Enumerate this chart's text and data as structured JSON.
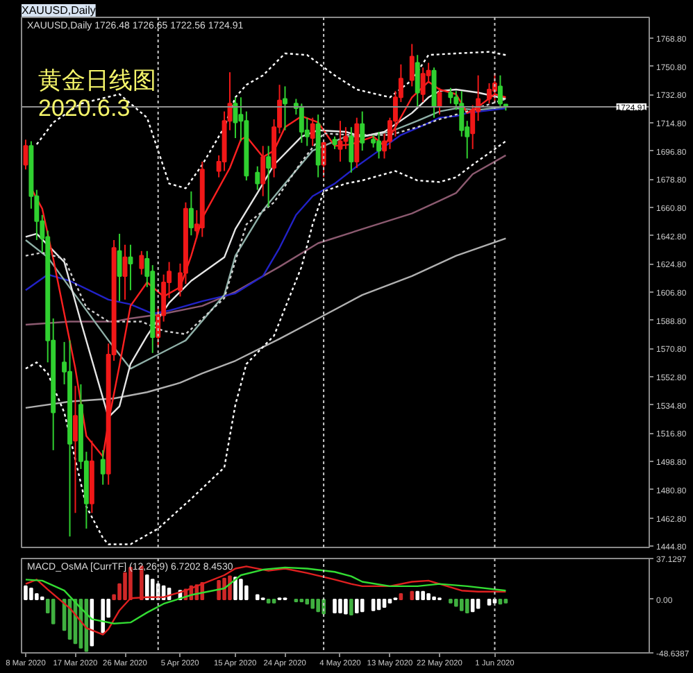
{
  "chart_data": [
    {
      "type": "candlestick",
      "title": "XAUUSD,Daily",
      "subtitle": "XAUUSD,Daily  1726.48 1726.65 1722.56 1724.91",
      "annotations": [
        "黄金日线图",
        "2020.6.3"
      ],
      "x": [
        "2020-03-08",
        "2020-03-09",
        "2020-03-10",
        "2020-03-11",
        "2020-03-12",
        "2020-03-13",
        "2020-03-15",
        "2020-03-16",
        "2020-03-17",
        "2020-03-18",
        "2020-03-19",
        "2020-03-20",
        "2020-03-22",
        "2020-03-23",
        "2020-03-24",
        "2020-03-25",
        "2020-03-26",
        "2020-03-27",
        "2020-03-29",
        "2020-03-30",
        "2020-03-31",
        "2020-04-01",
        "2020-04-02",
        "2020-04-03",
        "2020-04-05",
        "2020-04-06",
        "2020-04-07",
        "2020-04-08",
        "2020-04-09",
        "2020-04-12",
        "2020-04-13",
        "2020-04-14",
        "2020-04-15",
        "2020-04-16",
        "2020-04-17",
        "2020-04-19",
        "2020-04-20",
        "2020-04-21",
        "2020-04-22",
        "2020-04-23",
        "2020-04-24",
        "2020-04-26",
        "2020-04-27",
        "2020-04-28",
        "2020-04-29",
        "2020-04-30",
        "2020-05-01",
        "2020-05-03",
        "2020-05-04",
        "2020-05-05",
        "2020-05-06",
        "2020-05-07",
        "2020-05-08",
        "2020-05-10",
        "2020-05-11",
        "2020-05-12",
        "2020-05-13",
        "2020-05-14",
        "2020-05-15",
        "2020-05-17",
        "2020-05-18",
        "2020-05-19",
        "2020-05-20",
        "2020-05-21",
        "2020-05-22",
        "2020-05-24",
        "2020-05-25",
        "2020-05-26",
        "2020-05-27",
        "2020-05-28",
        "2020-05-29",
        "2020-05-31",
        "2020-06-01",
        "2020-06-02",
        "2020-06-03"
      ],
      "ohlc": [
        [
          1688,
          1704,
          1685,
          1700
        ],
        [
          1700,
          1703,
          1660,
          1668
        ],
        [
          1668,
          1672,
          1640,
          1652
        ],
        [
          1652,
          1656,
          1632,
          1641
        ],
        [
          1642,
          1646,
          1562,
          1576
        ],
        [
          1576,
          1590,
          1506,
          1530
        ],
        [
          1562,
          1575,
          1548,
          1556
        ],
        [
          1556,
          1576,
          1451,
          1510
        ],
        [
          1512,
          1547,
          1466,
          1528
        ],
        [
          1535,
          1548,
          1494,
          1499
        ],
        [
          1499,
          1505,
          1456,
          1472
        ],
        [
          1472,
          1512,
          1466,
          1499
        ],
        [
          1500,
          1506,
          1484,
          1491
        ],
        [
          1491,
          1574,
          1484,
          1567
        ],
        [
          1567,
          1640,
          1563,
          1635
        ],
        [
          1633,
          1644,
          1601,
          1617
        ],
        [
          1617,
          1637,
          1602,
          1629
        ],
        [
          1629,
          1637,
          1608,
          1625
        ],
        [
          1622,
          1633,
          1618,
          1630
        ],
        [
          1628,
          1633,
          1610,
          1617
        ],
        [
          1620,
          1624,
          1568,
          1578
        ],
        [
          1578,
          1597,
          1572,
          1592
        ],
        [
          1592,
          1618,
          1588,
          1613
        ],
        [
          1613,
          1626,
          1603,
          1620
        ],
        [
          1608,
          1625,
          1604,
          1619
        ],
        [
          1619,
          1664,
          1612,
          1660
        ],
        [
          1660,
          1671,
          1643,
          1648
        ],
        [
          1646,
          1659,
          1641,
          1650
        ],
        [
          1648,
          1690,
          1642,
          1685
        ],
        [
          1684,
          1694,
          1680,
          1690
        ],
        [
          1690,
          1722,
          1684,
          1716
        ],
        [
          1716,
          1747,
          1710,
          1727
        ],
        [
          1727,
          1731,
          1705,
          1715
        ],
        [
          1720,
          1731,
          1703,
          1716
        ],
        [
          1716,
          1722,
          1678,
          1681
        ],
        [
          1683,
          1687,
          1672,
          1676
        ],
        [
          1676,
          1700,
          1668,
          1693
        ],
        [
          1693,
          1700,
          1661,
          1686
        ],
        [
          1686,
          1717,
          1680,
          1712
        ],
        [
          1712,
          1739,
          1708,
          1729
        ],
        [
          1730,
          1738,
          1710,
          1727
        ],
        [
          1727,
          1730,
          1720,
          1724
        ],
        [
          1725,
          1727,
          1702,
          1709
        ],
        [
          1710,
          1718,
          1700,
          1706
        ],
        [
          1705,
          1718,
          1700,
          1714
        ],
        [
          1714,
          1720,
          1680,
          1688
        ],
        [
          1688,
          1704,
          1680,
          1702
        ],
        [
          1704,
          1706,
          1698,
          1701
        ],
        [
          1698,
          1716,
          1690,
          1703
        ],
        [
          1703,
          1712,
          1698,
          1706
        ],
        [
          1706,
          1712,
          1683,
          1690
        ],
        [
          1690,
          1718,
          1686,
          1714
        ],
        [
          1714,
          1722,
          1697,
          1702
        ],
        [
          1704,
          1707,
          1699,
          1702
        ],
        [
          1703,
          1709,
          1692,
          1697
        ],
        [
          1697,
          1708,
          1692,
          1703
        ],
        [
          1703,
          1718,
          1698,
          1716
        ],
        [
          1716,
          1735,
          1706,
          1731
        ],
        [
          1731,
          1752,
          1728,
          1743
        ],
        [
          1742,
          1765,
          1738,
          1757
        ],
        [
          1753,
          1758,
          1725,
          1734
        ],
        [
          1733,
          1750,
          1728,
          1746
        ],
        [
          1745,
          1753,
          1740,
          1748
        ],
        [
          1748,
          1750,
          1718,
          1725
        ],
        [
          1725,
          1737,
          1720,
          1734
        ],
        [
          1734,
          1737,
          1727,
          1731
        ],
        [
          1731,
          1735,
          1723,
          1727
        ],
        [
          1727,
          1735,
          1706,
          1710
        ],
        [
          1712,
          1716,
          1692,
          1706
        ],
        [
          1708,
          1726,
          1698,
          1723
        ],
        [
          1722,
          1745,
          1716,
          1730
        ],
        [
          1730,
          1740,
          1727,
          1736
        ],
        [
          1735,
          1746,
          1728,
          1740
        ],
        [
          1738,
          1745,
          1724,
          1727
        ],
        [
          1726.48,
          1726.65,
          1722.56,
          1724.91
        ]
      ],
      "colors": [
        "#f01818",
        "#30d030",
        "#30d030",
        "#30d030",
        "#30d030",
        "#30d030",
        "#30d030",
        "#30d030",
        "#f01818",
        "#30d030",
        "#30d030",
        "#f01818",
        "#30d030",
        "#f01818",
        "#f01818",
        "#30d030",
        "#f01818",
        "#30d030",
        "#f01818",
        "#30d030",
        "#30d030",
        "#f01818",
        "#f01818",
        "#f01818",
        "#f01818",
        "#f01818",
        "#30d030",
        "#f01818",
        "#f01818",
        "#f01818",
        "#f01818",
        "#f01818",
        "#30d030",
        "#30d030",
        "#30d030",
        "#30d030",
        "#f01818",
        "#30d030",
        "#f01818",
        "#f01818",
        "#30d030",
        "#30d030",
        "#30d030",
        "#30d030",
        "#f01818",
        "#30d030",
        "#f01818",
        "#30d030",
        "#f01818",
        "#f01818",
        "#30d030",
        "#f01818",
        "#30d030",
        "#30d030",
        "#30d030",
        "#f01818",
        "#f01818",
        "#f01818",
        "#f01818",
        "#f01818",
        "#30d030",
        "#f01818",
        "#f01818",
        "#30d030",
        "#f01818",
        "#30d030",
        "#30d030",
        "#30d030",
        "#30d030",
        "#f01818",
        "#f01818",
        "#f01818",
        "#f01818",
        "#30d030",
        "#30d030"
      ],
      "series": [
        {
          "type": "line",
          "color": "#b0b0b0",
          "x": [
            "2020-03-08",
            "2020-03-16",
            "2020-03-24",
            "2020-03-30",
            "2020-04-05",
            "2020-04-09",
            "2020-04-15",
            "2020-04-23",
            "2020-04-30",
            "2020-05-08",
            "2020-05-17",
            "2020-05-25",
            "2020-06-03"
          ],
          "values": [
            1533,
            1537,
            1539,
            1543,
            1549,
            1555,
            1563,
            1577,
            1590,
            1605,
            1617,
            1630,
            1641
          ]
        },
        {
          "type": "line",
          "color": "#8c5a70",
          "x": [
            "2020-03-08",
            "2020-03-16",
            "2020-03-24",
            "2020-03-27",
            "2020-04-02",
            "2020-04-09",
            "2020-04-15",
            "2020-04-23",
            "2020-04-30",
            "2020-05-08",
            "2020-05-17",
            "2020-05-22",
            "2020-05-25",
            "2020-05-28",
            "2020-06-03"
          ],
          "values": [
            1586,
            1588,
            1588,
            1590,
            1593,
            1598,
            1607,
            1623,
            1638,
            1647,
            1657,
            1665,
            1670,
            1682,
            1694
          ]
        },
        {
          "type": "line",
          "color": "#2222c8",
          "x": [
            "2020-03-08",
            "2020-03-12",
            "2020-03-16",
            "2020-03-23",
            "2020-03-27",
            "2020-03-31",
            "2020-04-03",
            "2020-04-09",
            "2020-04-15",
            "2020-04-20",
            "2020-04-23",
            "2020-04-26",
            "2020-04-29",
            "2020-05-03",
            "2020-05-07",
            "2020-05-11",
            "2020-05-15",
            "2020-05-19",
            "2020-05-22",
            "2020-05-25",
            "2020-05-27",
            "2020-06-03"
          ],
          "values": [
            1608,
            1618,
            1614,
            1602,
            1599,
            1593,
            1595,
            1601,
            1606,
            1617,
            1635,
            1656,
            1668,
            1676,
            1687,
            1697,
            1707,
            1713,
            1718,
            1719,
            1721,
            1724
          ]
        },
        {
          "type": "line",
          "color": "#8fb0a8",
          "x": [
            "2020-03-08",
            "2020-03-12",
            "2020-03-18",
            "2020-03-23",
            "2020-03-27",
            "2020-04-01",
            "2020-04-06",
            "2020-04-13",
            "2020-04-15",
            "2020-04-20",
            "2020-04-24",
            "2020-04-29",
            "2020-05-05",
            "2020-05-08",
            "2020-05-13",
            "2020-05-18",
            "2020-05-22",
            "2020-05-25",
            "2020-05-29",
            "2020-06-03"
          ],
          "values": [
            1640,
            1629,
            1600,
            1576,
            1558,
            1567,
            1576,
            1605,
            1630,
            1659,
            1676,
            1697,
            1706,
            1706,
            1709,
            1716,
            1722,
            1724,
            1723,
            1725
          ]
        },
        {
          "type": "line",
          "color": "#e6e6e6",
          "x": [
            "2020-03-08",
            "2020-03-10",
            "2020-03-15",
            "2020-03-18",
            "2020-03-23",
            "2020-03-25",
            "2020-03-27",
            "2020-03-30",
            "2020-04-03",
            "2020-04-07",
            "2020-04-13",
            "2020-04-15",
            "2020-04-19",
            "2020-04-22",
            "2020-04-27",
            "2020-04-30",
            "2020-05-05",
            "2020-05-08",
            "2020-05-12",
            "2020-05-17",
            "2020-05-20",
            "2020-05-22",
            "2020-05-25",
            "2020-05-29",
            "2020-06-03"
          ],
          "values": [
            1642,
            1644,
            1626,
            1588,
            1527,
            1534,
            1561,
            1579,
            1600,
            1614,
            1629,
            1647,
            1670,
            1688,
            1706,
            1710,
            1709,
            1706,
            1709,
            1721,
            1731,
            1735,
            1736,
            1734,
            1730
          ]
        },
        {
          "type": "line",
          "color": "#ff2020",
          "x": [
            "2020-03-09",
            "2020-03-11",
            "2020-03-13",
            "2020-03-17",
            "2020-03-19",
            "2020-03-22",
            "2020-03-23",
            "2020-03-25",
            "2020-03-27",
            "2020-03-30",
            "2020-04-02",
            "2020-04-05",
            "2020-04-07",
            "2020-04-09",
            "2020-04-14",
            "2020-04-16",
            "2020-04-17",
            "2020-04-20",
            "2020-04-22",
            "2020-04-24",
            "2020-04-27",
            "2020-04-30",
            "2020-05-03",
            "2020-05-06",
            "2020-05-10",
            "2020-05-12",
            "2020-05-14",
            "2020-05-17",
            "2020-05-20",
            "2020-05-22",
            "2020-05-25",
            "2020-05-27",
            "2020-05-29",
            "2020-06-01",
            "2020-06-03"
          ],
          "values": [
            1673,
            1660,
            1628,
            1558,
            1515,
            1502,
            1524,
            1560,
            1598,
            1613,
            1604,
            1610,
            1630,
            1654,
            1686,
            1704,
            1706,
            1693,
            1697,
            1712,
            1719,
            1715,
            1700,
            1701,
            1706,
            1700,
            1712,
            1731,
            1741,
            1736,
            1733,
            1721,
            1725,
            1733,
            1731
          ]
        },
        {
          "type": "line",
          "color": "#ffffff",
          "line_style": "dotted",
          "x": [
            "2020-03-10",
            "2020-03-13",
            "2020-03-18",
            "2020-03-25",
            "2020-03-30",
            "2020-04-01",
            "2020-04-03",
            "2020-04-06",
            "2020-04-09",
            "2020-04-13",
            "2020-04-15",
            "2020-04-17",
            "2020-04-20",
            "2020-04-24",
            "2020-04-28",
            "2020-05-03",
            "2020-05-07",
            "2020-05-13",
            "2020-05-17",
            "2020-05-20",
            "2020-05-25",
            "2020-05-31",
            "2020-06-03"
          ],
          "values": [
            1701,
            1715,
            1727,
            1733,
            1718,
            1697,
            1676,
            1673,
            1688,
            1712,
            1731,
            1739,
            1745,
            1759,
            1758,
            1745,
            1736,
            1731,
            1742,
            1758,
            1759,
            1760,
            1758
          ]
        },
        {
          "type": "line",
          "color": "#d0d0d0",
          "line_style": "dotted",
          "x": [
            "2020-03-08",
            "2020-03-11",
            "2020-03-15",
            "2020-03-19",
            "2020-03-23",
            "2020-03-29",
            "2020-04-02",
            "2020-04-06",
            "2020-04-13",
            "2020-04-17",
            "2020-04-22",
            "2020-04-27",
            "2020-05-01",
            "2020-05-06",
            "2020-05-13",
            "2020-05-18",
            "2020-05-22",
            "2020-05-27",
            "2020-06-03"
          ],
          "values": [
            1630,
            1632,
            1628,
            1597,
            1588,
            1588,
            1582,
            1580,
            1603,
            1650,
            1664,
            1690,
            1708,
            1707,
            1707,
            1712,
            1717,
            1722,
            1730
          ]
        },
        {
          "type": "line",
          "color": "#ffffff",
          "line_style": "dotted",
          "x": [
            "2020-03-08",
            "2020-03-10",
            "2020-03-12",
            "2020-03-15",
            "2020-03-17",
            "2020-03-19",
            "2020-03-22",
            "2020-03-23",
            "2020-03-27",
            "2020-04-01",
            "2020-04-07",
            "2020-04-13",
            "2020-04-15",
            "2020-04-17",
            "2020-04-22",
            "2020-04-27",
            "2020-04-29",
            "2020-05-01",
            "2020-05-05",
            "2020-05-08",
            "2020-05-14",
            "2020-05-18",
            "2020-05-22",
            "2020-05-25",
            "2020-05-28",
            "2020-06-03"
          ],
          "values": [
            1558,
            1562,
            1555,
            1530,
            1500,
            1470,
            1450,
            1446,
            1446,
            1456,
            1475,
            1495,
            1535,
            1561,
            1579,
            1623,
            1650,
            1671,
            1676,
            1678,
            1684,
            1678,
            1677,
            1680,
            1688,
            1703
          ]
        }
      ],
      "xlim": [
        "2020-03-07T06:00",
        "2020-06-29T00:00"
      ],
      "ylim": [
        1444,
        1782
      ],
      "yticks": [
        {
          "value": 1444.8,
          "label": "1444.80"
        },
        {
          "value": 1462.8,
          "label": "1462.80"
        },
        {
          "value": 1480.8,
          "label": "1480.80"
        },
        {
          "value": 1498.8,
          "label": "1498.80"
        },
        {
          "value": 1516.8,
          "label": "1516.80"
        },
        {
          "value": 1534.8,
          "label": "1534.80"
        },
        {
          "value": 1552.8,
          "label": "1552.80"
        },
        {
          "value": 1570.8,
          "label": "1570.80"
        },
        {
          "value": 1588.8,
          "label": "1588.80"
        },
        {
          "value": 1606.8,
          "label": "1606.80"
        },
        {
          "value": 1624.8,
          "label": "1624.80"
        },
        {
          "value": 1642.8,
          "label": "1642.80"
        },
        {
          "value": 1660.8,
          "label": "1660.80"
        },
        {
          "value": 1678.8,
          "label": "1678.80"
        },
        {
          "value": 1696.8,
          "label": "1696.80"
        },
        {
          "value": 1714.8,
          "label": "1714.80"
        },
        {
          "value": 1732.8,
          "label": "1732.80"
        },
        {
          "value": 1750.8,
          "label": "1750.80"
        },
        {
          "value": 1768.8,
          "label": "1768.80"
        }
      ],
      "tick_labels": "y",
      "ref_lines": [
        {
          "axis": "x",
          "value": "2020-04-01",
          "color": "#c8c8c8",
          "line_style": "dotted"
        },
        {
          "axis": "x",
          "value": "2020-05-01",
          "color": "#c8c8c8",
          "line_style": "dotted"
        },
        {
          "axis": "x",
          "value": "2020-06-01",
          "color": "#c8c8c8",
          "line_style": "dotted"
        },
        {
          "axis": "y",
          "value": 1724.91,
          "label": "1724.91",
          "color": "#909090",
          "line_style": "solid"
        }
      ]
    },
    {
      "type": "bar",
      "title": "MACD_OsMA [CurrTF] (12,26,9) 6.7202 8.4530",
      "x": [
        "2020-03-08",
        "2020-03-09",
        "2020-03-10",
        "2020-03-11",
        "2020-03-12",
        "2020-03-13",
        "2020-03-15",
        "2020-03-16",
        "2020-03-17",
        "2020-03-18",
        "2020-03-19",
        "2020-03-20",
        "2020-03-22",
        "2020-03-23",
        "2020-03-24",
        "2020-03-25",
        "2020-03-26",
        "2020-03-27",
        "2020-03-29",
        "2020-03-30",
        "2020-03-31",
        "2020-04-01",
        "2020-04-02",
        "2020-04-03",
        "2020-04-05",
        "2020-04-06",
        "2020-04-07",
        "2020-04-08",
        "2020-04-09",
        "2020-04-12",
        "2020-04-13",
        "2020-04-14",
        "2020-04-15",
        "2020-04-16",
        "2020-04-17",
        "2020-04-19",
        "2020-04-20",
        "2020-04-21",
        "2020-04-22",
        "2020-04-23",
        "2020-04-24",
        "2020-04-26",
        "2020-04-27",
        "2020-04-28",
        "2020-04-29",
        "2020-04-30",
        "2020-05-01",
        "2020-05-03",
        "2020-05-04",
        "2020-05-05",
        "2020-05-06",
        "2020-05-07",
        "2020-05-08",
        "2020-05-10",
        "2020-05-11",
        "2020-05-12",
        "2020-05-13",
        "2020-05-14",
        "2020-05-15",
        "2020-05-17",
        "2020-05-18",
        "2020-05-19",
        "2020-05-20",
        "2020-05-21",
        "2020-05-22",
        "2020-05-24",
        "2020-05-25",
        "2020-05-26",
        "2020-05-27",
        "2020-05-28",
        "2020-05-29",
        "2020-05-31",
        "2020-06-01",
        "2020-06-02",
        "2020-06-03"
      ],
      "series": [
        {
          "values": [
            12,
            10,
            5,
            2,
            -12,
            -22,
            -28,
            -36,
            -40,
            -44,
            -47,
            -42,
            -30,
            -16,
            4,
            14,
            24,
            29,
            30,
            22,
            18,
            14,
            12,
            10,
            8,
            9,
            12,
            13,
            15,
            17,
            19,
            21,
            20,
            18,
            12,
            4,
            1,
            -3,
            -3,
            1,
            1,
            -2,
            -2,
            -4,
            -8,
            -11,
            -13,
            -12,
            -12,
            -13,
            -14,
            -12,
            -11,
            -10,
            -9,
            -7,
            -3,
            1,
            5,
            7,
            7,
            7,
            5,
            2,
            1,
            -3,
            -6,
            -10,
            -12,
            -11,
            -8,
            -5,
            -3,
            -4,
            -3
          ],
          "colors": [
            "#ffffff",
            "#ffffff",
            "#ffffff",
            "#ffffff",
            "#40b040",
            "#40b040",
            "#40b040",
            "#40b040",
            "#40b040",
            "#40b040",
            "#40b040",
            "#ffffff",
            "#ffffff",
            "#ffffff",
            "#d02828",
            "#d02828",
            "#d02828",
            "#d02828",
            "#d02828",
            "#ffffff",
            "#ffffff",
            "#ffffff",
            "#ffffff",
            "#ffffff",
            "#ffffff",
            "#d02828",
            "#d02828",
            "#d02828",
            "#d02828",
            "#d02828",
            "#d02828",
            "#d02828",
            "#ffffff",
            "#ffffff",
            "#ffffff",
            "#ffffff",
            "#ffffff",
            "#40b040",
            "#40b040",
            "#ffffff",
            "#ffffff",
            "#40b040",
            "#40b040",
            "#40b040",
            "#40b040",
            "#40b040",
            "#40b040",
            "#ffffff",
            "#ffffff",
            "#ffffff",
            "#40b040",
            "#ffffff",
            "#ffffff",
            "#ffffff",
            "#ffffff",
            "#ffffff",
            "#ffffff",
            "#ffffff",
            "#d02828",
            "#d02828",
            "#ffffff",
            "#ffffff",
            "#ffffff",
            "#ffffff",
            "#ffffff",
            "#40b040",
            "#40b040",
            "#40b040",
            "#40b040",
            "#ffffff",
            "#ffffff",
            "#ffffff",
            "#ffffff",
            "#40b040",
            "#40b040"
          ]
        },
        {
          "type": "line",
          "color": "#e02020",
          "x": [
            "2020-03-08",
            "2020-03-10",
            "2020-03-12",
            "2020-03-16",
            "2020-03-19",
            "2020-03-22",
            "2020-03-23",
            "2020-03-25",
            "2020-03-27",
            "2020-03-30",
            "2020-04-02",
            "2020-04-06",
            "2020-04-09",
            "2020-04-13",
            "2020-04-15",
            "2020-04-17",
            "2020-04-21",
            "2020-04-24",
            "2020-04-28",
            "2020-05-03",
            "2020-05-06",
            "2020-05-08",
            "2020-05-13",
            "2020-05-17",
            "2020-05-20",
            "2020-05-22",
            "2020-05-26",
            "2020-05-29",
            "2020-06-03"
          ],
          "values": [
            14,
            18,
            9,
            -8,
            -26,
            -32,
            -27,
            -10,
            1,
            2,
            2,
            8,
            14,
            22,
            28,
            30,
            26,
            28,
            24,
            18,
            14,
            12,
            12,
            16,
            17,
            14,
            8,
            7,
            7
          ]
        },
        {
          "type": "line",
          "color": "#33dd33",
          "x": [
            "2020-03-08",
            "2020-03-11",
            "2020-03-15",
            "2020-03-18",
            "2020-03-20",
            "2020-03-24",
            "2020-03-27",
            "2020-03-30",
            "2020-04-02",
            "2020-04-07",
            "2020-04-13",
            "2020-04-16",
            "2020-04-20",
            "2020-04-24",
            "2020-04-28",
            "2020-05-03",
            "2020-05-06",
            "2020-05-08",
            "2020-05-13",
            "2020-05-18",
            "2020-05-22",
            "2020-05-27",
            "2020-06-03"
          ],
          "values": [
            18,
            17,
            8,
            -8,
            -18,
            -22,
            -21,
            -12,
            -4,
            4,
            10,
            22,
            27,
            29,
            28,
            25,
            21,
            16,
            12,
            12,
            14,
            12,
            8
          ]
        }
      ],
      "xlim": [
        "2020-03-07T06:00",
        "2020-06-29T00:00"
      ],
      "ylim": [
        -48.6387,
        37.1297
      ],
      "xticks": [
        {
          "value": "2020-03-08",
          "label": "8 Mar 2020"
        },
        {
          "value": "2020-03-17",
          "label": "17 Mar 2020"
        },
        {
          "value": "2020-03-26",
          "label": "26 Mar 2020"
        },
        {
          "value": "2020-04-05",
          "label": "5 Apr 2020"
        },
        {
          "value": "2020-04-15",
          "label": "15 Apr 2020"
        },
        {
          "value": "2020-04-24",
          "label": "24 Apr 2020"
        },
        {
          "value": "2020-05-04",
          "label": "4 May 2020"
        },
        {
          "value": "2020-05-13",
          "label": "13 May 2020"
        },
        {
          "value": "2020-05-22",
          "label": "22 May 2020"
        },
        {
          "value": "2020-06-01",
          "label": "1 Jun 2020"
        }
      ],
      "yticks": [
        37.1297,
        {
          "value": 0,
          "label": "0.00"
        },
        -48.6387
      ],
      "ref_lines": [
        {
          "axis": "x",
          "value": "2020-04-01",
          "color": "#c8c8c8",
          "line_style": "dotted"
        },
        {
          "axis": "x",
          "value": "2020-05-01",
          "color": "#c8c8c8",
          "line_style": "dotted"
        },
        {
          "axis": "x",
          "value": "2020-06-01",
          "color": "#c8c8c8",
          "line_style": "dotted"
        }
      ]
    }
  ]
}
